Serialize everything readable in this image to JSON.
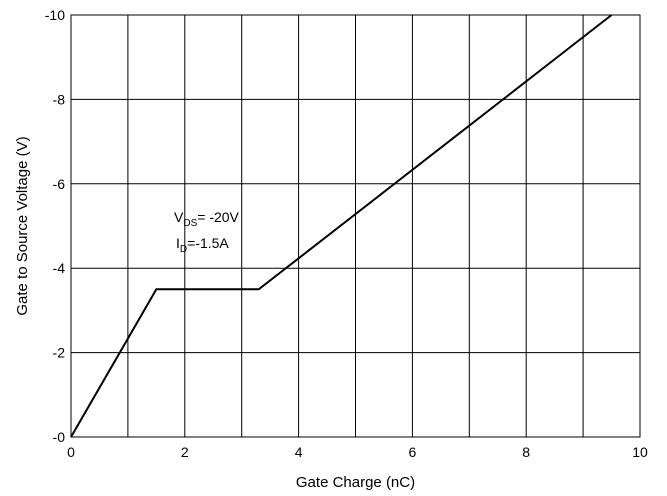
{
  "chart_data": {
    "type": "line",
    "title": "",
    "xlabel": "Gate Charge (nC)",
    "ylabel": "Gate to Source Voltage (V)",
    "xlim": [
      0,
      10
    ],
    "ylim": [
      0,
      -10
    ],
    "grid": true,
    "x_ticks": [
      "0",
      "2",
      "4",
      "6",
      "8",
      "10"
    ],
    "y_ticks": [
      "-0",
      "-2",
      "-4",
      "-6",
      "-8",
      "-10"
    ],
    "series": [
      {
        "x": [
          0,
          1.5,
          3.3,
          9.5
        ],
        "y": [
          0,
          -3.5,
          -3.5,
          -10
        ]
      }
    ],
    "annotation": {
      "line1_main": "V",
      "line1_sub": "DS",
      "line1_rest": "= -20V",
      "line2_main": "I",
      "line2_sub": "D",
      "line2_rest": "=-1.5A"
    }
  }
}
